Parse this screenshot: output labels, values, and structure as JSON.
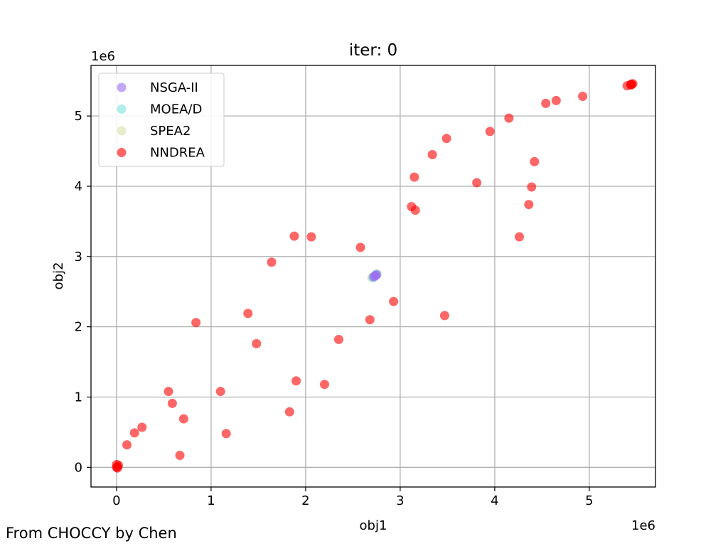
{
  "footer": {
    "credit": "From CHOCCY by Chen"
  },
  "chart_data": {
    "type": "scatter",
    "title": "iter: 0",
    "xlabel": "obj1",
    "ylabel": "obj2",
    "x_offset_label": "1e6",
    "y_offset_label": "1e6",
    "xlim": [
      -0.27,
      5.7
    ],
    "ylim": [
      -0.28,
      5.72
    ],
    "xticks": [
      0,
      1,
      2,
      3,
      4,
      5
    ],
    "yticks": [
      0,
      1,
      2,
      3,
      4,
      5
    ],
    "grid": true,
    "legend_position": "upper-left",
    "series": [
      {
        "name": "NSGA-II",
        "color": "#9b6ef3",
        "points": [
          [
            2.72,
            2.71
          ],
          [
            2.73,
            2.72
          ],
          [
            2.74,
            2.73
          ],
          [
            2.75,
            2.74
          ]
        ]
      },
      {
        "name": "MOEA/D",
        "color": "#7be3dc",
        "points": [
          [
            2.71,
            2.7
          ],
          [
            2.73,
            2.72
          ],
          [
            2.74,
            2.74
          ],
          [
            2.75,
            2.75
          ]
        ]
      },
      {
        "name": "SPEA2",
        "color": "#d9e0a8",
        "points": [
          [
            2.7,
            2.7
          ],
          [
            2.72,
            2.71
          ],
          [
            2.74,
            2.73
          ],
          [
            2.76,
            2.75
          ]
        ]
      },
      {
        "name": "NNDREA",
        "color": "#ff0000",
        "points": [
          [
            0.0,
            0.0
          ],
          [
            0.01,
            0.01
          ],
          [
            0.0,
            0.04
          ],
          [
            0.02,
            0.03
          ],
          [
            0.01,
            -0.01
          ],
          [
            0.11,
            0.32
          ],
          [
            0.19,
            0.49
          ],
          [
            0.27,
            0.57
          ],
          [
            0.55,
            1.08
          ],
          [
            0.59,
            0.91
          ],
          [
            0.67,
            0.17
          ],
          [
            0.71,
            0.69
          ],
          [
            0.84,
            2.06
          ],
          [
            1.1,
            1.08
          ],
          [
            1.16,
            0.48
          ],
          [
            1.39,
            2.19
          ],
          [
            1.48,
            1.76
          ],
          [
            1.64,
            2.92
          ],
          [
            1.83,
            0.79
          ],
          [
            1.88,
            3.29
          ],
          [
            1.9,
            1.23
          ],
          [
            2.06,
            3.28
          ],
          [
            2.2,
            1.18
          ],
          [
            2.35,
            1.82
          ],
          [
            2.58,
            3.13
          ],
          [
            2.68,
            2.1
          ],
          [
            2.93,
            2.36
          ],
          [
            3.12,
            3.71
          ],
          [
            3.15,
            4.13
          ],
          [
            3.16,
            3.66
          ],
          [
            3.34,
            4.45
          ],
          [
            3.47,
            2.16
          ],
          [
            3.49,
            4.68
          ],
          [
            3.81,
            4.05
          ],
          [
            3.95,
            4.78
          ],
          [
            4.15,
            4.97
          ],
          [
            4.26,
            3.28
          ],
          [
            4.36,
            3.74
          ],
          [
            4.39,
            3.99
          ],
          [
            4.42,
            4.35
          ],
          [
            4.54,
            5.18
          ],
          [
            4.65,
            5.22
          ],
          [
            4.93,
            5.28
          ],
          [
            5.4,
            5.43
          ],
          [
            5.44,
            5.44
          ],
          [
            5.45,
            5.45
          ],
          [
            5.46,
            5.46
          ],
          [
            5.44,
            5.45
          ]
        ]
      }
    ]
  }
}
